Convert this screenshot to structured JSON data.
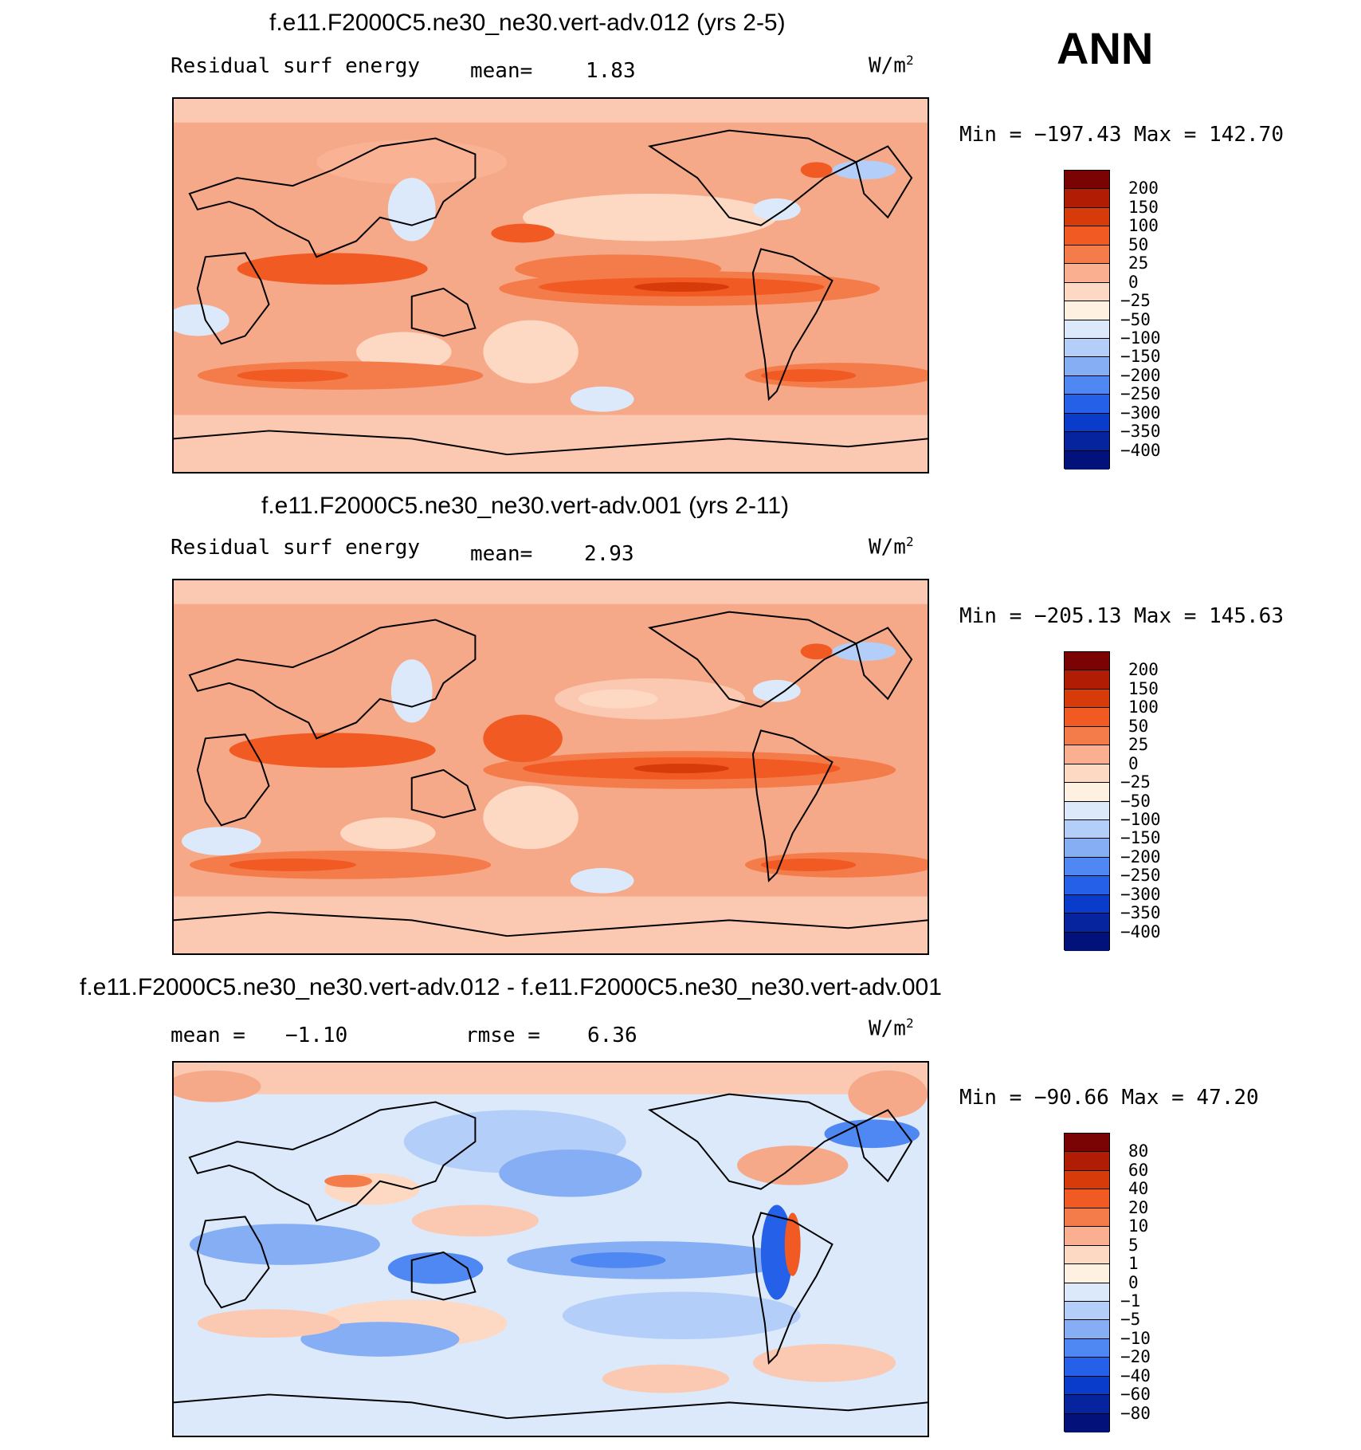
{
  "season": "ANN",
  "units_base": "W/m",
  "units_exp": "2",
  "panels": [
    {
      "title": "f.e11.F2000C5.ne30_ne30.vert-adv.012 (yrs 2-5)",
      "left_label": "Residual surf energy",
      "stat_label": "mean=",
      "stat_value": "1.83",
      "minmax": "Min = −197.43 Max = 142.70",
      "colorbar_labels": [
        "200",
        "150",
        "100",
        "50",
        "25",
        "0",
        "−25",
        "−50",
        "−100",
        "−150",
        "−200",
        "−250",
        "−300",
        "−350",
        "−400"
      ]
    },
    {
      "title": "f.e11.F2000C5.ne30_ne30.vert-adv.001 (yrs 2-11)",
      "left_label": "Residual surf energy",
      "stat_label": "mean=",
      "stat_value": "2.93",
      "minmax": "Min = −205.13 Max = 145.63",
      "colorbar_labels": [
        "200",
        "150",
        "100",
        "50",
        "25",
        "0",
        "−25",
        "−50",
        "−100",
        "−150",
        "−200",
        "−250",
        "−300",
        "−350",
        "−400"
      ]
    },
    {
      "title": "f.e11.F2000C5.ne30_ne30.vert-adv.012 - f.e11.F2000C5.ne30_ne30.vert-adv.001",
      "left_label": "mean =",
      "left_value": "−1.10",
      "stat_label": "rmse =",
      "stat_value": "6.36",
      "minmax": "Min = −90.66 Max =  47.20",
      "colorbar_labels": [
        "80",
        "60",
        "40",
        "20",
        "10",
        "5",
        "1",
        "0",
        "−1",
        "−5",
        "−10",
        "−20",
        "−40",
        "−60",
        "−80"
      ]
    }
  ],
  "colorbar_colors": [
    "#7a0403",
    "#b01d04",
    "#d63b09",
    "#f15a22",
    "#f47c4a",
    "#fab090",
    "#fdd9c4",
    "#fff1e1",
    "#dbe9fb",
    "#b3cef8",
    "#85aef5",
    "#4f88f2",
    "#2461e8",
    "#0a3ccc",
    "#05249e",
    "#03127a"
  ]
}
